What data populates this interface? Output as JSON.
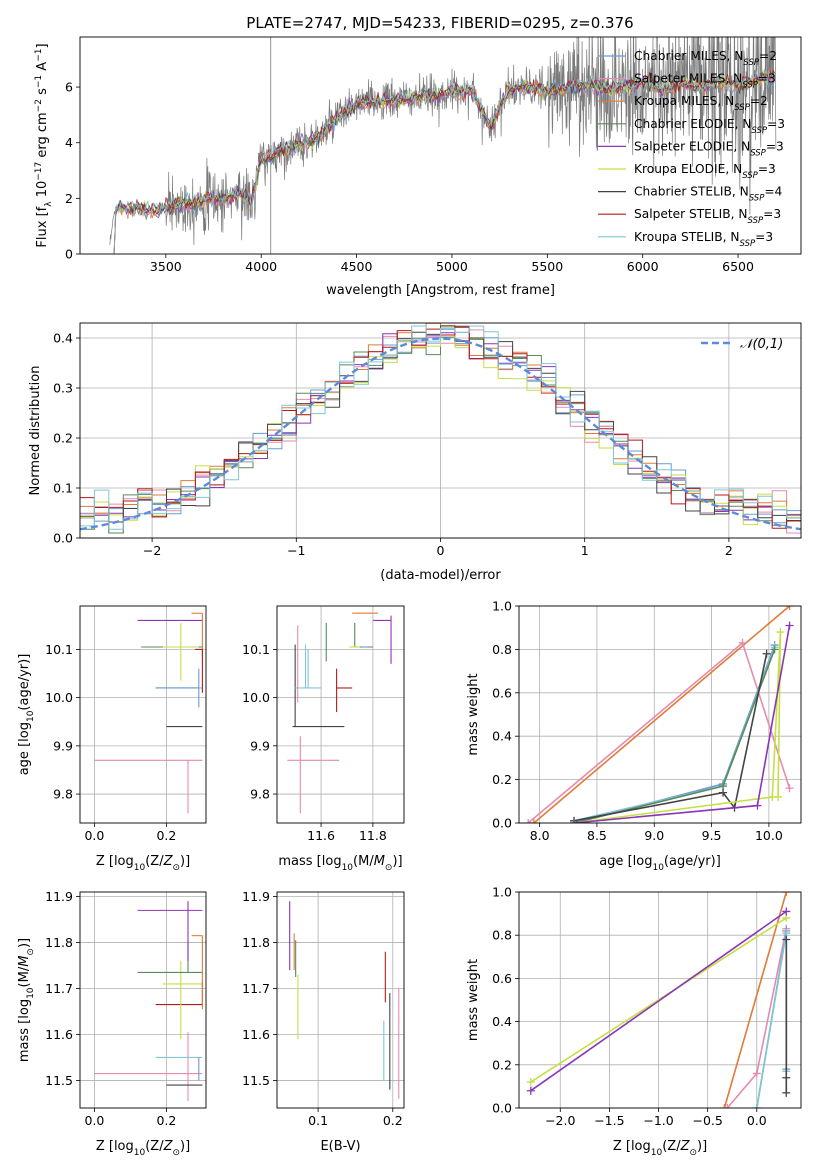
{
  "figure_title": "PLATE=2747, MJD=54233, FIBERID=0295, z=0.376",
  "colors": {
    "Chabrier MILES": "#6b9bd1",
    "Salpeter MILES": "#e68ab0",
    "Kroupa MILES": "#e07b39",
    "Chabrier ELODIE": "#5a8a5a",
    "Salpeter ELODIE": "#8b35b8",
    "Kroupa ELODIE": "#c6df45",
    "Chabrier STELIB": "#444444",
    "Salpeter STELIB": "#b3191b",
    "Kroupa STELIB": "#7fc6d6",
    "normal": "#5b8bd9"
  },
  "chart_data": [
    {
      "id": "spectrum",
      "type": "line",
      "xlabel": "wavelength [Angstrom, rest frame]",
      "ylabel": "Flux [f_λ 10^-17 erg cm^-2 s^-1 A^-1]",
      "xlim": [
        3050,
        6830
      ],
      "ylim": [
        0,
        7.8
      ],
      "xticks": [
        3500,
        4000,
        4500,
        5000,
        5500,
        6000,
        6500
      ],
      "yticks": [
        0,
        2,
        4,
        6
      ],
      "grid": false,
      "legend_position": "top-right",
      "legend": [
        {
          "model": "Chabrier MILES",
          "label": "Chabrier MILES, N",
          "sub": "SSP",
          "value": "=2"
        },
        {
          "model": "Salpeter MILES",
          "label": "Salpeter MILES, N",
          "sub": "SSP",
          "value": "=3"
        },
        {
          "model": "Kroupa MILES",
          "label": "Kroupa MILES, N",
          "sub": "SSP",
          "value": "=2"
        },
        {
          "model": "Chabrier ELODIE",
          "label": "Chabrier ELODIE, N",
          "sub": "SSP",
          "value": "=3"
        },
        {
          "model": "Salpeter ELODIE",
          "label": "Salpeter ELODIE, N",
          "sub": "SSP",
          "value": "=3"
        },
        {
          "model": "Kroupa ELODIE",
          "label": "Kroupa ELODIE, N",
          "sub": "SSP",
          "value": "=3"
        },
        {
          "model": "Chabrier STELIB",
          "label": "Chabrier STELIB, N",
          "sub": "SSP",
          "value": "=4"
        },
        {
          "model": "Salpeter STELIB",
          "label": "Salpeter STELIB, N",
          "sub": "SSP",
          "value": "=3"
        },
        {
          "model": "Kroupa STELIB",
          "label": "Kroupa STELIB, N",
          "sub": "SSP",
          "value": "=3"
        }
      ],
      "model_continuum": {
        "x": [
          3200,
          3230,
          3260,
          3300,
          3350,
          3400,
          3450,
          3500,
          3550,
          3600,
          3650,
          3700,
          3750,
          3800,
          3850,
          3900,
          3950,
          4000,
          4050,
          4100,
          4200,
          4300,
          4400,
          4500,
          4600,
          4700,
          4800,
          4900,
          5000,
          5100,
          5200,
          5300,
          5400,
          5500,
          5600,
          5700,
          5800,
          5900,
          6000,
          6100,
          6200,
          6300,
          6400,
          6500,
          6600,
          6700
        ],
        "y": [
          0.0,
          1.5,
          1.7,
          1.6,
          1.65,
          1.6,
          1.55,
          1.7,
          1.75,
          1.8,
          1.85,
          1.9,
          2.0,
          1.95,
          2.1,
          2.2,
          1.8,
          3.4,
          3.5,
          3.7,
          3.9,
          4.2,
          4.9,
          5.4,
          5.5,
          5.5,
          5.6,
          5.7,
          5.8,
          5.9,
          4.6,
          5.9,
          6.0,
          5.8,
          6.0,
          6.1,
          5.9,
          6.0,
          6.2,
          5.9,
          6.1,
          6.0,
          6.2,
          6.0,
          6.3,
          6.4
        ]
      },
      "observed_note": "noisy observed spectrum drawn in grey around the model continuum"
    },
    {
      "id": "residuals",
      "type": "histogram",
      "xlabel": "(data-model)/error",
      "ylabel": "Normed distribution",
      "xlim": [
        -2.5,
        2.5
      ],
      "ylim": [
        0,
        0.43
      ],
      "xticks": [
        -2,
        -1,
        0,
        1,
        2
      ],
      "yticks": [
        0.0,
        0.1,
        0.2,
        0.3,
        0.4
      ],
      "grid": true,
      "legend_position": "top-right",
      "legend": [
        {
          "label": "𝒩(0,1)",
          "style": "dashed",
          "color_key": "normal"
        }
      ],
      "bin_width": 0.1,
      "bin_start": -2.5
    },
    {
      "id": "age_vs_Z",
      "type": "errorbar",
      "xlabel": "Z [log10(Z/Z⊙)]",
      "ylabel": "age [log10(age/yr)]",
      "xlim": [
        -0.04,
        0.31
      ],
      "ylim": [
        9.74,
        10.19
      ],
      "xticks": [
        0.0,
        0.2
      ],
      "yticks": [
        9.8,
        9.9,
        10.0,
        10.1
      ],
      "grid": true,
      "points": [
        {
          "model": "Salpeter MILES",
          "x": 0.26,
          "y": 9.87,
          "xerr": [
            0.26,
            0.04
          ],
          "yerr": [
            0.11,
            0.0
          ]
        },
        {
          "model": "Chabrier STELIB",
          "x": 0.3,
          "y": 9.94,
          "xerr": [
            0.1,
            0.0
          ],
          "yerr": [
            0.0,
            0.0
          ]
        },
        {
          "model": "Kroupa STELIB",
          "x": 0.24,
          "y": 10.02,
          "xerr": [
            0.07,
            0.06
          ],
          "yerr": [
            0.0,
            0.0
          ]
        },
        {
          "model": "Chabrier MILES",
          "x": 0.29,
          "y": 10.02,
          "xerr": [
            0.12,
            0.0
          ],
          "yerr": [
            0.04,
            0.04
          ]
        },
        {
          "model": "Chabrier ELODIE",
          "x": 0.27,
          "y": 10.105,
          "xerr": [
            0.14,
            0.03
          ],
          "yerr": [
            0.0,
            0.0
          ]
        },
        {
          "model": "Kroupa ELODIE",
          "x": 0.24,
          "y": 10.105,
          "xerr": [
            0.05,
            0.05
          ],
          "yerr": [
            0.07,
            0.05
          ]
        },
        {
          "model": "Salpeter ELODIE",
          "x": 0.25,
          "y": 10.16,
          "xerr": [
            0.13,
            0.05
          ],
          "yerr": [
            0.0,
            0.0
          ]
        },
        {
          "model": "Kroupa MILES",
          "x": 0.3,
          "y": 10.175,
          "xerr": [
            0.03,
            0.0
          ],
          "yerr": [
            0.09,
            0.0
          ]
        },
        {
          "model": "Salpeter STELIB",
          "x": 0.3,
          "y": 10.1,
          "xerr": [
            0.02,
            0.0
          ],
          "yerr": [
            0.09,
            0.0
          ]
        }
      ]
    },
    {
      "id": "age_vs_mass",
      "type": "errorbar",
      "xlabel": "mass [log10(M/M⊙)]",
      "ylabel": "",
      "xlim": [
        11.43,
        11.92
      ],
      "ylim": [
        9.74,
        10.19
      ],
      "xticks": [
        11.6,
        11.8
      ],
      "yticks": [
        9.8,
        9.9,
        10.0,
        10.1
      ],
      "grid": true,
      "points": [
        {
          "model": "Salpeter MILES",
          "x": 11.52,
          "y": 9.87,
          "xerr": [
            0.05,
            0.15
          ],
          "yerr": [
            0.11,
            0.05
          ]
        },
        {
          "model": "Chabrier STELIB",
          "x": 11.5,
          "y": 9.94,
          "xerr": [
            0.01,
            0.19
          ],
          "yerr": [
            0.0,
            0.17
          ]
        },
        {
          "model": "Kroupa STELIB",
          "x": 11.55,
          "y": 10.02,
          "xerr": [
            0.05,
            0.05
          ],
          "yerr": [
            0.0,
            0.08
          ]
        },
        {
          "model": "Salpeter STELIB",
          "x": 11.66,
          "y": 10.02,
          "xerr": [
            0.0,
            0.06
          ],
          "yerr": [
            0.05,
            0.04
          ]
        },
        {
          "model": "Chabrier ELODIE",
          "x": 11.73,
          "y": 10.105,
          "xerr": [
            0.0,
            0.07
          ],
          "yerr": [
            0.0,
            0.05
          ]
        },
        {
          "model": "Kroupa ELODIE",
          "x": 11.71,
          "y": 10.105,
          "xerr": [
            0.0,
            0.04
          ],
          "yerr": [
            0.0,
            0.0
          ]
        },
        {
          "model": "Chabrier MILES",
          "x": 11.76,
          "y": 10.105,
          "xerr": [
            0.0,
            0.02
          ],
          "yerr": [
            0.0,
            0.0
          ]
        },
        {
          "model": "Salpeter ELODIE",
          "x": 11.87,
          "y": 10.16,
          "xerr": [
            0.07,
            0.0
          ],
          "yerr": [
            0.09,
            0.01
          ]
        },
        {
          "model": "Kroupa MILES",
          "x": 11.82,
          "y": 10.175,
          "xerr": [
            0.1,
            0.0
          ],
          "yerr": [
            0.0,
            0.0
          ]
        },
        {
          "model": "Chabrier ELODIE",
          "x": 11.62,
          "y": 10.105,
          "xerr": [
            0.0,
            0.0
          ],
          "yerr": [
            0.03,
            0.05
          ]
        },
        {
          "model": "Kroupa STELIB",
          "x": 11.54,
          "y": 10.02,
          "xerr": [
            0.0,
            0.0
          ],
          "yerr": [
            0.0,
            0.09
          ]
        },
        {
          "model": "Salpeter MILES",
          "x": 11.51,
          "y": 10.15,
          "xerr": [
            0.0,
            0.0
          ],
          "yerr": [
            0.16,
            0.0
          ]
        }
      ]
    },
    {
      "id": "massweight_vs_age",
      "type": "line",
      "xlabel": "age [log10(age/yr)]",
      "ylabel": "mass weight",
      "xlim": [
        7.82,
        10.28
      ],
      "ylim": [
        0,
        1.0
      ],
      "xticks": [
        8.0,
        8.5,
        9.0,
        9.5,
        10.0
      ],
      "yticks": [
        0.0,
        0.2,
        0.4,
        0.6,
        0.8,
        1.0
      ],
      "grid": true,
      "series": [
        {
          "model": "Kroupa MILES",
          "x": [
            7.95,
            10.18
          ],
          "y": [
            0.0,
            1.0
          ]
        },
        {
          "model": "Salpeter MILES",
          "x": [
            7.9,
            9.77,
            10.18
          ],
          "y": [
            0.0,
            0.83,
            0.16
          ]
        },
        {
          "model": "Chabrier MILES",
          "x": [
            8.3,
            9.6,
            10.05
          ],
          "y": [
            0.0,
            0.18,
            0.82
          ]
        },
        {
          "model": "Kroupa STELIB",
          "x": [
            8.3,
            9.6,
            10.05
          ],
          "y": [
            0.01,
            0.17,
            0.81
          ]
        },
        {
          "model": "Chabrier ELODIE",
          "x": [
            8.3,
            9.6,
            10.05
          ],
          "y": [
            0.0,
            0.17,
            0.8
          ]
        },
        {
          "model": "Chabrier STELIB",
          "x": [
            8.3,
            9.6,
            9.7,
            9.98
          ],
          "y": [
            0.01,
            0.14,
            0.07,
            0.78
          ]
        },
        {
          "model": "Kroupa ELODIE",
          "x": [
            8.3,
            10.03,
            10.1,
            10.08
          ],
          "y": [
            0.0,
            0.12,
            0.88,
            0.12
          ]
        },
        {
          "model": "Salpeter ELODIE",
          "x": [
            8.3,
            9.9,
            10.18
          ],
          "y": [
            0.0,
            0.08,
            0.91
          ]
        }
      ]
    },
    {
      "id": "mass_vs_Z",
      "type": "errorbar",
      "xlabel": "Z [log10(Z/Z⊙)]",
      "ylabel": "mass [log10(M/M⊙)]",
      "xlim": [
        -0.04,
        0.31
      ],
      "ylim": [
        11.44,
        11.91
      ],
      "xticks": [
        0.0,
        0.2
      ],
      "yticks": [
        11.5,
        11.6,
        11.7,
        11.8,
        11.9
      ],
      "grid": true,
      "points": [
        {
          "model": "Salpeter MILES",
          "x": 0.26,
          "y": 11.515,
          "xerr": [
            0.26,
            0.04
          ],
          "yerr": [
            0.06,
            0.09
          ]
        },
        {
          "model": "Chabrier STELIB",
          "x": 0.3,
          "y": 11.49,
          "xerr": [
            0.1,
            0.0
          ],
          "yerr": [
            0.0,
            0.0
          ]
        },
        {
          "model": "Kroupa STELIB",
          "x": 0.24,
          "y": 11.55,
          "xerr": [
            0.07,
            0.06
          ],
          "yerr": [
            0.0,
            0.0
          ]
        },
        {
          "model": "Chabrier MILES",
          "x": 0.29,
          "y": 11.55,
          "xerr": [
            0.0,
            0.0
          ],
          "yerr": [
            0.05,
            0.0
          ]
        },
        {
          "model": "Salpeter STELIB",
          "x": 0.3,
          "y": 11.665,
          "xerr": [
            0.13,
            0.0
          ],
          "yerr": [
            0.0,
            0.05
          ]
        },
        {
          "model": "Kroupa ELODIE",
          "x": 0.24,
          "y": 11.71,
          "xerr": [
            0.05,
            0.06
          ],
          "yerr": [
            0.12,
            0.05
          ]
        },
        {
          "model": "Chabrier ELODIE",
          "x": 0.26,
          "y": 11.735,
          "xerr": [
            0.14,
            0.04
          ],
          "yerr": [
            0.0,
            0.07
          ]
        },
        {
          "model": "Salpeter ELODIE",
          "x": 0.26,
          "y": 11.87,
          "xerr": [
            0.14,
            0.04
          ],
          "yerr": [
            0.11,
            0.02
          ]
        },
        {
          "model": "Kroupa MILES",
          "x": 0.3,
          "y": 11.815,
          "xerr": [
            0.03,
            0.0
          ],
          "yerr": [
            0.16,
            0.0
          ]
        }
      ]
    },
    {
      "id": "mass_vs_ebv",
      "type": "errorbar",
      "xlabel": "E(B-V)",
      "ylabel": "",
      "xlim": [
        0.045,
        0.215
      ],
      "ylim": [
        11.44,
        11.91
      ],
      "xticks": [
        0.1,
        0.2
      ],
      "yticks": [
        11.5,
        11.6,
        11.7,
        11.8,
        11.9
      ],
      "grid": true,
      "points": [
        {
          "model": "Salpeter ELODIE",
          "x": 0.062,
          "y": 11.82,
          "xerr": [
            0.0,
            0.0
          ],
          "yerr": [
            0.08,
            0.07
          ]
        },
        {
          "model": "Kroupa MILES",
          "x": 0.068,
          "y": 11.78,
          "xerr": [
            0.0,
            0.0
          ],
          "yerr": [
            0.04,
            0.04
          ]
        },
        {
          "model": "Chabrier ELODIE",
          "x": 0.07,
          "y": 11.765,
          "xerr": [
            0.0,
            0.0
          ],
          "yerr": [
            0.04,
            0.04
          ]
        },
        {
          "model": "Kroupa ELODIE",
          "x": 0.073,
          "y": 11.68,
          "xerr": [
            0.0,
            0.0
          ],
          "yerr": [
            0.09,
            0.05
          ]
        },
        {
          "model": "Salpeter STELIB",
          "x": 0.19,
          "y": 11.72,
          "xerr": [
            0.0,
            0.0
          ],
          "yerr": [
            0.05,
            0.06
          ]
        },
        {
          "model": "Chabrier STELIB",
          "x": 0.196,
          "y": 11.58,
          "xerr": [
            0.0,
            0.0
          ],
          "yerr": [
            0.1,
            0.11
          ]
        },
        {
          "model": "Kroupa STELIB",
          "x": 0.188,
          "y": 11.57,
          "xerr": [
            0.0,
            0.0
          ],
          "yerr": [
            0.07,
            0.06
          ]
        },
        {
          "model": "Salpeter MILES",
          "x": 0.208,
          "y": 11.58,
          "xerr": [
            0.0,
            0.0
          ],
          "yerr": [
            0.12,
            0.12
          ]
        }
      ]
    },
    {
      "id": "massweight_vs_Z",
      "type": "line",
      "xlabel": "Z [log10(Z/Z⊙)]",
      "ylabel": "mass weight",
      "xlim": [
        -2.42,
        0.45
      ],
      "ylim": [
        0,
        1.0
      ],
      "xticks": [
        -2.0,
        -1.5,
        -1.0,
        -0.5,
        0.0
      ],
      "yticks": [
        0.0,
        0.2,
        0.4,
        0.6,
        0.8,
        1.0
      ],
      "grid": true,
      "series": [
        {
          "model": "Kroupa MILES",
          "x": [
            -0.33,
            0.3
          ],
          "y": [
            0.0,
            1.0
          ]
        },
        {
          "model": "Salpeter MILES",
          "x": [
            -0.3,
            0.0,
            0.3
          ],
          "y": [
            0.0,
            0.16,
            0.83
          ]
        },
        {
          "model": "Chabrier MILES",
          "x": [
            0.0,
            0.3,
            0.3
          ],
          "y": [
            0.0,
            0.82,
            0.18
          ]
        },
        {
          "model": "Kroupa STELIB",
          "x": [
            0.0,
            0.3,
            0.3
          ],
          "y": [
            0.0,
            0.81,
            0.17
          ]
        },
        {
          "model": "Chabrier STELIB",
          "x": [
            0.3,
            0.3,
            0.3
          ],
          "y": [
            0.07,
            0.78,
            0.14
          ]
        },
        {
          "model": "Kroupa ELODIE",
          "x": [
            -2.3,
            0.3
          ],
          "y": [
            0.12,
            0.88
          ]
        },
        {
          "model": "Salpeter ELODIE",
          "x": [
            -2.3,
            0.3
          ],
          "y": [
            0.08,
            0.91
          ]
        }
      ]
    }
  ]
}
